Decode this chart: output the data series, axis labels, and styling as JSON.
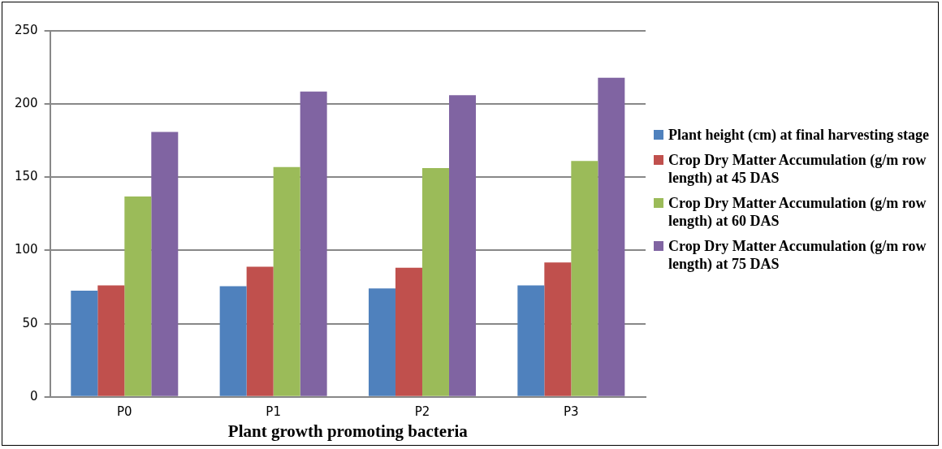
{
  "chart_data": {
    "type": "bar",
    "xlabel": "Plant growth promoting bacteria",
    "categories": [
      "P0",
      "P1",
      "P2",
      "P3"
    ],
    "series": [
      {
        "name": "Plant height (cm) at final harvesting stage",
        "color": "#4f81bd",
        "values": [
          72.6,
          75.6,
          74.1,
          76.2
        ]
      },
      {
        "name": "Crop Dry Matter Accumulation (g/m row length) at 45 DAS",
        "color": "#c0504d",
        "values": [
          76.2,
          88.9,
          88.2,
          91.8
        ]
      },
      {
        "name": "Crop Dry Matter Accumulation (g/m row length) at 60 DAS",
        "color": "#9bbb59",
        "values": [
          136.8,
          157,
          156.3,
          161.1
        ]
      },
      {
        "name": "Crop Dry Matter Accumulation (g/m row length) at 75 DAS",
        "color": "#8064a2",
        "values": [
          181,
          208.6,
          206,
          218
        ]
      }
    ],
    "ylim": [
      0,
      250
    ],
    "yticks": [
      0,
      50,
      100,
      150,
      200,
      250
    ],
    "grid": "y",
    "legend": "right"
  }
}
